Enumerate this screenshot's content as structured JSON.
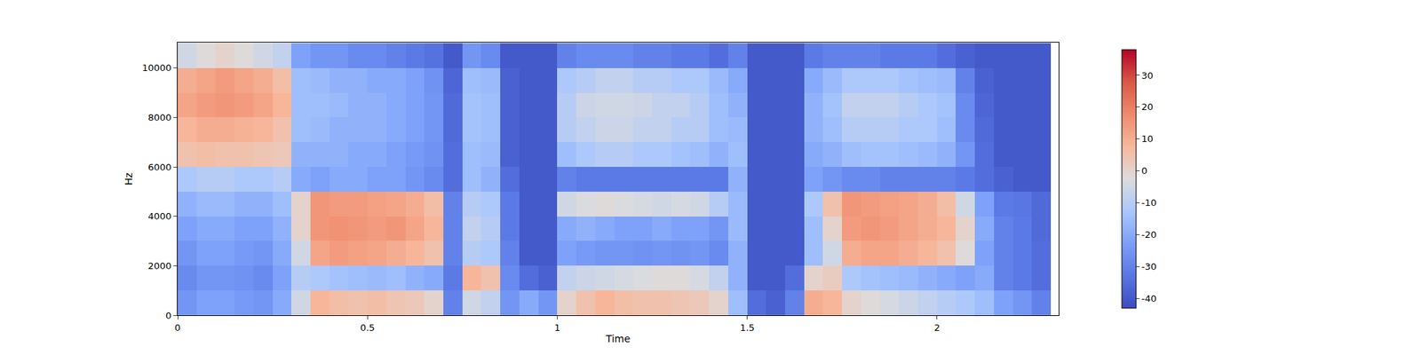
{
  "chart_data": {
    "type": "heatmap",
    "x_label": "Time",
    "y_label": "Hz",
    "xlim": [
      0,
      2.32
    ],
    "xticks": [
      0,
      0.5,
      1,
      1.5,
      2
    ],
    "ylim": [
      0,
      11025
    ],
    "yticks": [
      0,
      2000,
      4000,
      6000,
      8000,
      10000
    ],
    "x": [
      0.025,
      0.075,
      0.125,
      0.175,
      0.225,
      0.275,
      0.325,
      0.375,
      0.425,
      0.475,
      0.525,
      0.575,
      0.625,
      0.675,
      0.725,
      0.775,
      0.825,
      0.875,
      0.925,
      0.975,
      1.025,
      1.075,
      1.125,
      1.175,
      1.225,
      1.275,
      1.325,
      1.375,
      1.425,
      1.475,
      1.525,
      1.575,
      1.625,
      1.675,
      1.725,
      1.775,
      1.825,
      1.875,
      1.925,
      1.975,
      2.025,
      2.075,
      2.125,
      2.175,
      2.225,
      2.275
    ],
    "y": [
      500,
      1500,
      2500,
      3500,
      4500,
      5500,
      6500,
      7500,
      8500,
      9500,
      10500
    ],
    "cells": [
      [
        -25,
        -22,
        -22,
        -24,
        -25,
        -20,
        -5,
        8,
        6,
        5,
        6,
        4,
        3,
        0,
        -30,
        -5,
        -8,
        -25,
        -20,
        -25,
        0,
        5,
        8,
        6,
        5,
        5,
        4,
        3,
        0,
        -15,
        -35,
        -38,
        -30,
        10,
        8,
        0,
        -2,
        -4,
        -6,
        -8,
        -10,
        -12,
        -15,
        -22,
        -25,
        -30
      ],
      [
        -28,
        -25,
        -25,
        -26,
        -28,
        -22,
        -10,
        -12,
        -14,
        -15,
        -16,
        -15,
        -18,
        -20,
        -32,
        8,
        5,
        -28,
        -35,
        -38,
        -8,
        -6,
        -5,
        -4,
        -3,
        -2,
        -2,
        -4,
        -8,
        -18,
        -40,
        -40,
        -35,
        0,
        2,
        -12,
        -14,
        -15,
        -16,
        -18,
        -20,
        -22,
        -20,
        -30,
        -32,
        -35
      ],
      [
        -25,
        -22,
        -22,
        -24,
        -25,
        -20,
        -5,
        12,
        14,
        13,
        12,
        10,
        8,
        5,
        -30,
        -10,
        -12,
        -30,
        -40,
        -40,
        -22,
        -24,
        -25,
        -25,
        -26,
        -25,
        -26,
        -25,
        -28,
        -18,
        -40,
        -40,
        -40,
        -15,
        -5,
        10,
        12,
        12,
        10,
        8,
        5,
        -2,
        -22,
        -30,
        -32,
        -35
      ],
      [
        -22,
        -20,
        -20,
        -22,
        -22,
        -18,
        0,
        15,
        16,
        15,
        14,
        15,
        12,
        8,
        -30,
        -8,
        -10,
        -32,
        -40,
        -40,
        -20,
        -18,
        -20,
        -22,
        -22,
        -20,
        -22,
        -22,
        -25,
        -16,
        -40,
        -40,
        -40,
        -15,
        0,
        14,
        15,
        14,
        12,
        10,
        8,
        0,
        -20,
        -30,
        -32,
        -36
      ],
      [
        -18,
        -16,
        -16,
        -18,
        -18,
        -15,
        0,
        15,
        14,
        14,
        13,
        12,
        10,
        6,
        -30,
        -10,
        -12,
        -32,
        -40,
        -40,
        -5,
        -3,
        -2,
        -3,
        -4,
        -5,
        -4,
        -5,
        -10,
        -16,
        -40,
        -40,
        -40,
        -12,
        5,
        15,
        14,
        13,
        12,
        10,
        6,
        -5,
        -22,
        -32,
        -33,
        -36
      ],
      [
        -12,
        -10,
        -10,
        -12,
        -12,
        -10,
        -20,
        -22,
        -20,
        -20,
        -22,
        -22,
        -25,
        -28,
        -35,
        -15,
        -18,
        -35,
        -40,
        -40,
        -30,
        -32,
        -32,
        -32,
        -32,
        -32,
        -32,
        -32,
        -32,
        -18,
        -40,
        -40,
        -40,
        -22,
        -25,
        -28,
        -28,
        -30,
        -30,
        -30,
        -30,
        -32,
        -35,
        -38,
        -40,
        -40
      ],
      [
        5,
        6,
        5,
        5,
        4,
        3,
        -18,
        -18,
        -18,
        -20,
        -20,
        -22,
        -24,
        -26,
        -35,
        -15,
        -16,
        -38,
        -40,
        -40,
        -15,
        -12,
        -10,
        -10,
        -12,
        -12,
        -14,
        -15,
        -18,
        -15,
        -40,
        -40,
        -40,
        -20,
        -18,
        -15,
        -14,
        -14,
        -15,
        -16,
        -18,
        -25,
        -35,
        -40,
        -40,
        -40
      ],
      [
        8,
        10,
        10,
        9,
        8,
        5,
        -15,
        -16,
        -18,
        -18,
        -18,
        -20,
        -22,
        -25,
        -36,
        -14,
        -15,
        -38,
        -40,
        -40,
        -10,
        -8,
        -6,
        -6,
        -8,
        -8,
        -10,
        -10,
        -15,
        -16,
        -40,
        -40,
        -40,
        -18,
        -15,
        -10,
        -10,
        -10,
        -12,
        -12,
        -15,
        -28,
        -36,
        -40,
        -40,
        -40
      ],
      [
        12,
        14,
        15,
        14,
        12,
        8,
        -15,
        -15,
        -16,
        -18,
        -18,
        -20,
        -22,
        -25,
        -36,
        -14,
        -15,
        -38,
        -40,
        -40,
        -10,
        -6,
        -5,
        -5,
        -6,
        -8,
        -8,
        -10,
        -15,
        -18,
        -40,
        -40,
        -40,
        -18,
        -14,
        -8,
        -8,
        -8,
        -10,
        -12,
        -14,
        -28,
        -37,
        -40,
        -40,
        -40
      ],
      [
        10,
        12,
        14,
        12,
        10,
        6,
        -15,
        -16,
        -18,
        -18,
        -20,
        -20,
        -22,
        -26,
        -37,
        -15,
        -16,
        -38,
        -40,
        -40,
        -12,
        -10,
        -8,
        -8,
        -10,
        -10,
        -12,
        -12,
        -16,
        -20,
        -40,
        -40,
        -40,
        -20,
        -16,
        -12,
        -12,
        -12,
        -14,
        -15,
        -16,
        -30,
        -38,
        -40,
        -40,
        -40
      ],
      [
        -5,
        -2,
        0,
        -2,
        -5,
        -8,
        -22,
        -25,
        -25,
        -28,
        -28,
        -30,
        -32,
        -34,
        -40,
        -25,
        -28,
        -40,
        -40,
        -40,
        -30,
        -28,
        -28,
        -28,
        -30,
        -30,
        -32,
        -32,
        -35,
        -30,
        -40,
        -40,
        -40,
        -32,
        -30,
        -30,
        -30,
        -32,
        -32,
        -32,
        -35,
        -38,
        -40,
        -40,
        -40,
        -40
      ]
    ],
    "colorbar": {
      "range": [
        -43,
        38
      ],
      "ticks": [
        -40,
        -30,
        -20,
        -10,
        0,
        10,
        20,
        30
      ]
    }
  }
}
